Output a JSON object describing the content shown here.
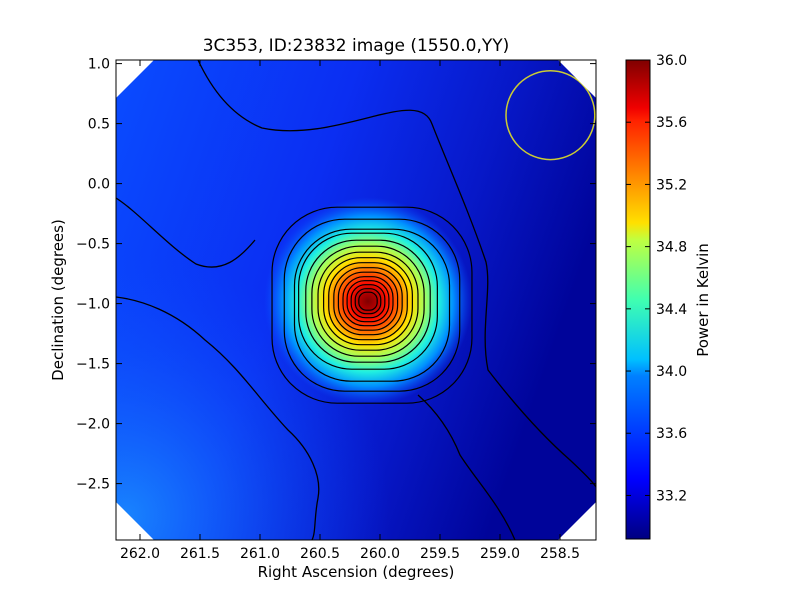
{
  "chart_data": {
    "type": "heatmap",
    "title": "3C353, ID:23832 image (1550.0,YY)",
    "xlabel": "Right Ascension (degrees)",
    "ylabel": "Declination (degrees)",
    "colorbar_label": "Power in Kelvin",
    "x_reversed": true,
    "xlim": [
      262.2,
      258.2
    ],
    "ylim": [
      -2.97,
      1.03
    ],
    "x_ticks": [
      262.0,
      261.5,
      261.0,
      260.5,
      260.0,
      259.5,
      259.0,
      258.5
    ],
    "x_tick_labels": [
      "262.0",
      "261.5",
      "261.0",
      "260.5",
      "260.0",
      "259.5",
      "259.0",
      "258.5"
    ],
    "y_ticks": [
      1.0,
      0.5,
      0.0,
      -0.5,
      -1.0,
      -1.5,
      -2.0,
      -2.5
    ],
    "y_tick_labels": [
      "1.0",
      "0.5",
      "0.0",
      "−0.5",
      "−1.0",
      "−1.5",
      "−2.0",
      "−2.5"
    ],
    "colorbar_range": [
      32.92,
      36.0
    ],
    "colorbar_ticks": [
      36.0,
      35.6,
      35.2,
      34.8,
      34.4,
      34.0,
      33.6,
      33.2
    ],
    "colorbar_tick_labels": [
      "36.0",
      "35.6",
      "35.2",
      "34.8",
      "34.4",
      "34.0",
      "33.6",
      "33.2"
    ],
    "colormap": "jet",
    "source_peak": {
      "ra": 260.1,
      "dec": -0.98,
      "value": 36.0
    },
    "beam_circle": {
      "ra": 258.58,
      "dec": 0.57,
      "radius_deg": 0.37,
      "color": "#cccc33"
    },
    "contour_color": "#000000",
    "masked_corner_color": "#ffffff",
    "grid": false
  }
}
